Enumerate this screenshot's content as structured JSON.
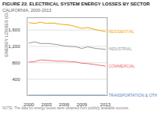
{
  "chart_data": {
    "type": "line",
    "title": "FIGURE 22. ELECTRICAL SYSTEM ENERGY LOSSES BY SECTOR",
    "subtitle": "CALIFORNIA, 2000-2013",
    "caption": "NOTE: The data for energy losses were obtained from publicly available sources.",
    "ylabel": "ENERGY LOSSES (GWh)",
    "x": [
      2000,
      2001,
      2002,
      2003,
      2004,
      2005,
      2006,
      2007,
      2008,
      2009,
      2010,
      2011,
      2012,
      2013
    ],
    "series": [
      {
        "name": "RESIDENTIAL",
        "color": "#f5a800",
        "values": [
          1780,
          1760,
          1790,
          1760,
          1770,
          1750,
          1730,
          1720,
          1680,
          1640,
          1660,
          1620,
          1590,
          1560
        ]
      },
      {
        "name": "INDUSTRIAL",
        "color": "#999999",
        "values": [
          1280,
          1310,
          1270,
          1270,
          1260,
          1240,
          1210,
          1200,
          1190,
          1150,
          1190,
          1160,
          1140,
          1130
        ]
      },
      {
        "name": "COMMERCIAL",
        "color": "#f07070",
        "values": [
          820,
          830,
          870,
          860,
          850,
          840,
          840,
          830,
          820,
          790,
          780,
          760,
          740,
          720
        ]
      },
      {
        "name": "TRANSPORTATION & OTHER",
        "color": "#5588bb",
        "values": [
          8,
          8,
          8,
          9,
          9,
          9,
          9,
          9,
          9,
          9,
          9,
          9,
          9,
          9
        ]
      }
    ],
    "xlim": [
      1999.7,
      2013.3
    ],
    "xticks": [
      2000,
      2003,
      2006,
      2009,
      2013
    ],
    "ylim": [
      0,
      1900
    ],
    "yticks": [
      400,
      800,
      {
        "value": 1200,
        "label": "1,200"
      },
      {
        "value": 1600,
        "label": "1,600"
      }
    ],
    "grid": true
  }
}
